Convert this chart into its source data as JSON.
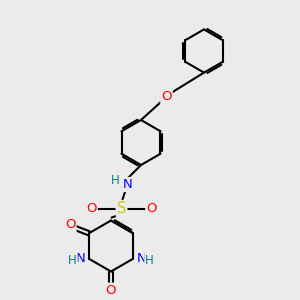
{
  "bg_color": "#ebebeb",
  "atom_colors": {
    "C": "#000000",
    "N": "#0000ff",
    "O": "#ff0000",
    "S": "#cccc00",
    "H_teal": "#008080"
  },
  "bond_color": "#000000",
  "bond_width": 1.5,
  "figsize": [
    3.0,
    3.0
  ],
  "dpi": 100,
  "xlim": [
    0,
    10
  ],
  "ylim": [
    0,
    10
  ]
}
